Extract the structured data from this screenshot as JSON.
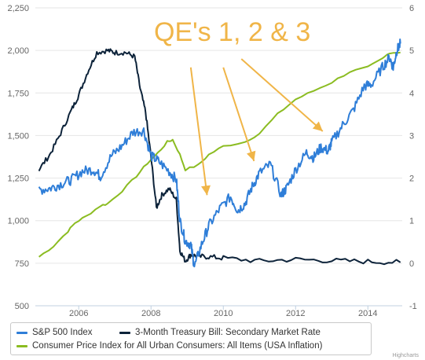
{
  "chart_data": {
    "type": "line",
    "annotation": "QE's 1, 2 & 3",
    "x_ticks": [
      "2006",
      "2008",
      "2010",
      "2012",
      "2014"
    ],
    "x_tick_values": [
      2006,
      2008,
      2010,
      2012,
      2014
    ],
    "xlim": [
      2004.8,
      2014.95
    ],
    "y_left_ticks": [
      "500",
      "750",
      "1,000",
      "1,250",
      "1,500",
      "1,750",
      "2,000",
      "2,250"
    ],
    "y_left_values": [
      500,
      750,
      1000,
      1250,
      1500,
      1750,
      2000,
      2250
    ],
    "ylim_left": [
      500,
      2250
    ],
    "y_right_ticks": [
      "-1",
      "0",
      "1",
      "2",
      "3",
      "4",
      "5",
      "6"
    ],
    "y_right_values": [
      -1,
      0,
      1,
      2,
      3,
      4,
      5,
      6
    ],
    "ylim_right": [
      -1,
      6
    ],
    "grid": true,
    "legend_position": "bottom-left",
    "credit": "Highcharts",
    "series": [
      {
        "name": "S&P 500 Index",
        "axis": "left",
        "color": "#2F7ED8",
        "x": [
          2004.9,
          2005.2,
          2005.5,
          2005.8,
          2006.1,
          2006.4,
          2006.6,
          2006.9,
          2007.2,
          2007.5,
          2007.8,
          2008.0,
          2008.2,
          2008.5,
          2008.7,
          2008.8,
          2008.95,
          2009.1,
          2009.2,
          2009.4,
          2009.6,
          2009.9,
          2010.2,
          2010.4,
          2010.6,
          2010.8,
          2011.0,
          2011.3,
          2011.6,
          2011.75,
          2012.0,
          2012.3,
          2012.5,
          2012.7,
          2012.9,
          2013.0,
          2013.3,
          2013.6,
          2013.9,
          2014.1,
          2014.4,
          2014.6,
          2014.7,
          2014.8,
          2014.9
        ],
        "values": [
          1180,
          1190,
          1215,
          1240,
          1290,
          1300,
          1260,
          1380,
          1440,
          1520,
          1530,
          1380,
          1350,
          1290,
          1240,
          1000,
          880,
          860,
          730,
          860,
          970,
          1070,
          1140,
          1060,
          1100,
          1200,
          1280,
          1330,
          1150,
          1190,
          1300,
          1400,
          1370,
          1430,
          1410,
          1460,
          1560,
          1650,
          1790,
          1800,
          1900,
          1960,
          1900,
          2000,
          2040
        ]
      },
      {
        "name": "3-Month Treasury Bill: Secondary Market Rate",
        "axis": "right",
        "color": "#0D233A",
        "x": [
          2004.9,
          2005.2,
          2005.5,
          2005.8,
          2006.0,
          2006.25,
          2006.5,
          2006.8,
          2007.0,
          2007.3,
          2007.55,
          2007.7,
          2007.85,
          2008.0,
          2008.15,
          2008.3,
          2008.5,
          2008.7,
          2008.8,
          2008.95,
          2009.1,
          2009.3,
          2009.6,
          2010.0,
          2011.0,
          2012.0,
          2013.0,
          2014.0,
          2014.9
        ],
        "values": [
          2.2,
          2.55,
          3.05,
          3.6,
          3.95,
          4.5,
          4.95,
          5.0,
          4.95,
          4.95,
          4.85,
          4.1,
          3.55,
          2.5,
          1.3,
          1.6,
          1.75,
          1.5,
          0.3,
          0.05,
          0.2,
          0.16,
          0.15,
          0.12,
          0.05,
          0.09,
          0.06,
          0.04,
          0.02
        ]
      },
      {
        "name": "Consumer Price Index for All Urban Consumers: All Items (USA Inflation)",
        "axis": "right",
        "color": "#8BBC21",
        "x": [
          2004.9,
          2005.3,
          2005.7,
          2005.9,
          2006.2,
          2006.6,
          2006.8,
          2007.2,
          2007.6,
          2007.9,
          2008.2,
          2008.45,
          2008.6,
          2008.8,
          2008.95,
          2009.3,
          2009.6,
          2010.0,
          2010.6,
          2011.0,
          2011.5,
          2012.0,
          2012.5,
          2013.0,
          2013.5,
          2014.0,
          2014.4,
          2014.6,
          2014.9
        ],
        "values": [
          0.15,
          0.4,
          0.75,
          0.95,
          1.1,
          1.35,
          1.4,
          1.7,
          2.05,
          2.35,
          2.6,
          2.85,
          2.9,
          2.55,
          2.2,
          2.3,
          2.55,
          2.75,
          2.85,
          3.05,
          3.5,
          3.85,
          4.05,
          4.25,
          4.5,
          4.6,
          4.8,
          4.95,
          4.95
        ]
      }
    ],
    "annotation_arrows": [
      {
        "from": [
          2009.1,
          4.6
        ],
        "to": [
          2009.55,
          1.6
        ]
      },
      {
        "from": [
          2010.0,
          4.6
        ],
        "to": [
          2010.85,
          2.4
        ]
      },
      {
        "from": [
          2010.5,
          4.8
        ],
        "to": [
          2012.75,
          3.1
        ]
      }
    ]
  }
}
